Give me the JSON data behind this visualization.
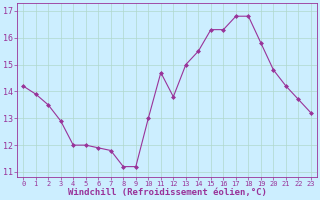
{
  "x": [
    0,
    1,
    2,
    3,
    4,
    5,
    6,
    7,
    8,
    9,
    10,
    11,
    12,
    13,
    14,
    15,
    16,
    17,
    18,
    19,
    20,
    21,
    22,
    23
  ],
  "y": [
    14.2,
    13.9,
    13.5,
    12.9,
    12.0,
    12.0,
    11.9,
    11.8,
    11.2,
    11.2,
    13.0,
    14.7,
    13.8,
    15.0,
    15.5,
    16.3,
    16.3,
    16.8,
    16.8,
    15.8,
    14.8,
    14.2,
    13.7,
    13.2
  ],
  "line_color": "#993399",
  "marker": "D",
  "marker_size": 2.0,
  "bg_color": "#cceeff",
  "grid_color": "#aaddcc",
  "xlabel": "Windchill (Refroidissement éolien,°C)",
  "xlabel_color": "#993399",
  "tick_color": "#993399",
  "label_color": "#993399",
  "ylim": [
    10.8,
    17.3
  ],
  "yticks": [
    11,
    12,
    13,
    14,
    15,
    16,
    17
  ],
  "xlim": [
    -0.5,
    23.5
  ],
  "xticks": [
    0,
    1,
    2,
    3,
    4,
    5,
    6,
    7,
    8,
    9,
    10,
    11,
    12,
    13,
    14,
    15,
    16,
    17,
    18,
    19,
    20,
    21,
    22,
    23
  ],
  "xtick_fontsize": 5.0,
  "ytick_fontsize": 6.0,
  "xlabel_fontsize": 6.5
}
